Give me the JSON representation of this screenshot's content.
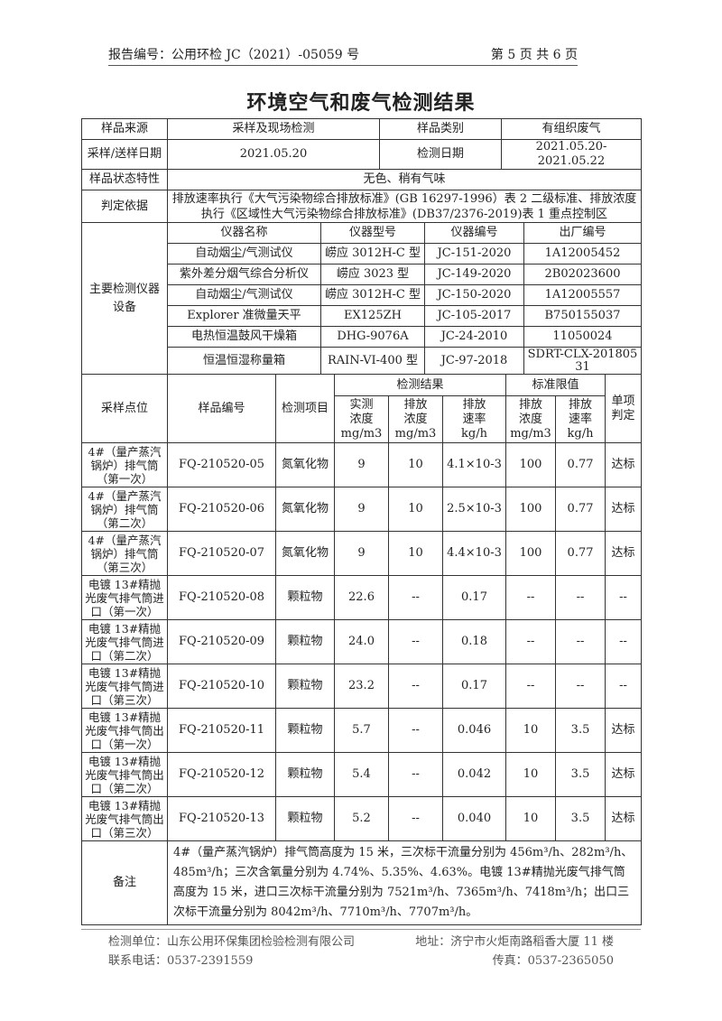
{
  "header": {
    "report_no": "报告编号：公用环检 JC（2021）-05059 号",
    "page": "第 5 页 共 6 页"
  },
  "title": "环境空气和废气检测结果",
  "info": {
    "source_label": "样品来源",
    "source": "采样及现场检测",
    "category_label": "样品类别",
    "category": "有组织废气",
    "date_label": "采样/送样日期",
    "date": "2021.05.20",
    "test_date_label": "检测日期",
    "test_date": "2021.05.20-2021.05.22",
    "state_label": "样品状态特性",
    "state": "无色、稍有气味",
    "basis_label": "判定依据",
    "basis": "排放速率执行《大气污染物综合排放标准》(GB 16297-1996）表 2 二级标准、排放浓度执行《区域性大气污染物综合排放标准》(DB37/2376-2019)表 1 重点控制区"
  },
  "instruments": {
    "label": "主要检测仪器设备",
    "headers": [
      "仪器名称",
      "仪器型号",
      "仪器编号",
      "出厂编号"
    ],
    "rows": [
      [
        "自动烟尘/气测试仪",
        "崂应 3012H-C 型",
        "JC-151-2020",
        "1A12005452"
      ],
      [
        "紫外差分烟气综合分析仪",
        "崂应 3023 型",
        "JC-149-2020",
        "2B02023600"
      ],
      [
        "自动烟尘/气测试仪",
        "崂应 3012H-C 型",
        "JC-150-2020",
        "1A12005557"
      ],
      [
        "Explorer 准微量天平",
        "EX125ZH",
        "JC-105-2017",
        "B750155037"
      ],
      [
        "电热恒温鼓风干燥箱",
        "DHG-9076A",
        "JC-24-2010",
        "11050024"
      ],
      [
        "恒温恒湿称量箱",
        "RAIN-VI-400 型",
        "JC-97-2018",
        "SDRT-CLX-20180531"
      ]
    ]
  },
  "results": {
    "h_point": "采样点位",
    "h_sample": "样品编号",
    "h_item": "检测项目",
    "h_result": "检测结果",
    "h_limit": "标准限值",
    "h_judge": "单项判定",
    "h_sub": [
      [
        "实测",
        "浓度",
        "mg/m3"
      ],
      [
        "排放",
        "浓度",
        "mg/m3"
      ],
      [
        "排放",
        "速率",
        "kg/h"
      ],
      [
        "排放",
        "浓度",
        "mg/m3"
      ],
      [
        "排放",
        "速率",
        "kg/h"
      ]
    ],
    "rows": [
      {
        "point": "4#（量产蒸汽锅炉）排气筒（第一次）",
        "sample": "FQ-210520-05",
        "item": "氮氧化物",
        "measured": "9",
        "conc": "10",
        "rate": "4.1×10-3",
        "lim_conc": "100",
        "lim_rate": "0.77",
        "judge": "达标"
      },
      {
        "point": "4#（量产蒸汽锅炉）排气筒（第二次）",
        "sample": "FQ-210520-06",
        "item": "氮氧化物",
        "measured": "9",
        "conc": "10",
        "rate": "2.5×10-3",
        "lim_conc": "100",
        "lim_rate": "0.77",
        "judge": "达标"
      },
      {
        "point": "4#（量产蒸汽锅炉）排气筒（第三次）",
        "sample": "FQ-210520-07",
        "item": "氮氧化物",
        "measured": "9",
        "conc": "10",
        "rate": "4.4×10-3",
        "lim_conc": "100",
        "lim_rate": "0.77",
        "judge": "达标"
      },
      {
        "point": "电镀 13#精抛光废气排气筒进口（第一次）",
        "sample": "FQ-210520-08",
        "item": "颗粒物",
        "measured": "22.6",
        "conc": "--",
        "rate": "0.17",
        "lim_conc": "--",
        "lim_rate": "--",
        "judge": "--"
      },
      {
        "point": "电镀 13#精抛光废气排气筒进口（第二次）",
        "sample": "FQ-210520-09",
        "item": "颗粒物",
        "measured": "24.0",
        "conc": "--",
        "rate": "0.18",
        "lim_conc": "--",
        "lim_rate": "--",
        "judge": "--"
      },
      {
        "point": "电镀 13#精抛光废气排气筒进口（第三次）",
        "sample": "FQ-210520-10",
        "item": "颗粒物",
        "measured": "23.2",
        "conc": "--",
        "rate": "0.17",
        "lim_conc": "--",
        "lim_rate": "--",
        "judge": "--"
      },
      {
        "point": "电镀 13#精抛光废气排气筒出口（第一次）",
        "sample": "FQ-210520-11",
        "item": "颗粒物",
        "measured": "5.7",
        "conc": "--",
        "rate": "0.046",
        "lim_conc": "10",
        "lim_rate": "3.5",
        "judge": "达标"
      },
      {
        "point": "电镀 13#精抛光废气排气筒出口（第二次）",
        "sample": "FQ-210520-12",
        "item": "颗粒物",
        "measured": "5.4",
        "conc": "--",
        "rate": "0.042",
        "lim_conc": "10",
        "lim_rate": "3.5",
        "judge": "达标"
      },
      {
        "point": "电镀 13#精抛光废气排气筒出口（第三次）",
        "sample": "FQ-210520-13",
        "item": "颗粒物",
        "measured": "5.2",
        "conc": "--",
        "rate": "0.040",
        "lim_conc": "10",
        "lim_rate": "3.5",
        "judge": "达标"
      }
    ]
  },
  "remarks": {
    "label": "备注",
    "text": "4#（量产蒸汽锅炉）排气筒高度为 15 米，三次标干流量分别为 456m³/h、282m³/h、485m³/h；三次含氧量分别为 4.74%、5.35%、4.63%。电镀 13#精抛光废气排气筒高度为 15 米，进口三次标干流量分别为 7521m³/h、7365m³/h、7418m³/h；出口三次标干流量分别为 8042m³/h、7710m³/h、7707m³/h。"
  },
  "footer": {
    "unit": "检测单位：山东公用环保集团检验检测有限公司",
    "address": "地址：济宁市火炬南路稻香大厦 11 楼",
    "phone": "联系电话：0537-2391559",
    "fax": "传真：0537-2365050"
  }
}
